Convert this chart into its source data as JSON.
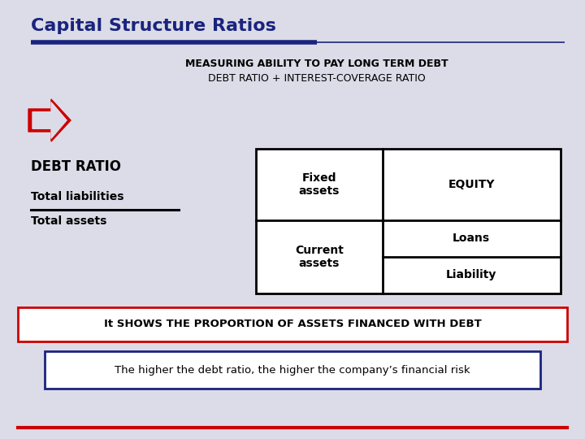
{
  "title": "Capital Structure Ratios",
  "title_color": "#1a237e",
  "title_fontsize": 16,
  "bg_color": "#dcdce8",
  "line1_color": "#1a237e",
  "subtitle1": "MEASURING ABILITY TO PAY LONG TERM DEBT",
  "subtitle2": "DEBT RATIO + INTEREST-COVERAGE RATIO",
  "debt_ratio_label": "DEBT RATIO",
  "total_liabilities": "Total liabilities",
  "total_assets": "Total assets",
  "fixed_assets": "Fixed\nassets",
  "current_assets": "Current\nassets",
  "equity": "EQUITY",
  "loans": "Loans",
  "liability": "Liability",
  "box1_text": "It SHOWS THE PROPORTION OF ASSETS FINANCED WITH DEBT",
  "box2_text": "The higher the debt ratio, the higher the company’s financial risk",
  "arrow_color": "#cc0000",
  "box1_edge_color": "#cc0000",
  "box2_edge_color": "#1a237e",
  "grid_color": "#000000",
  "bottom_line_color": "#cc0000"
}
